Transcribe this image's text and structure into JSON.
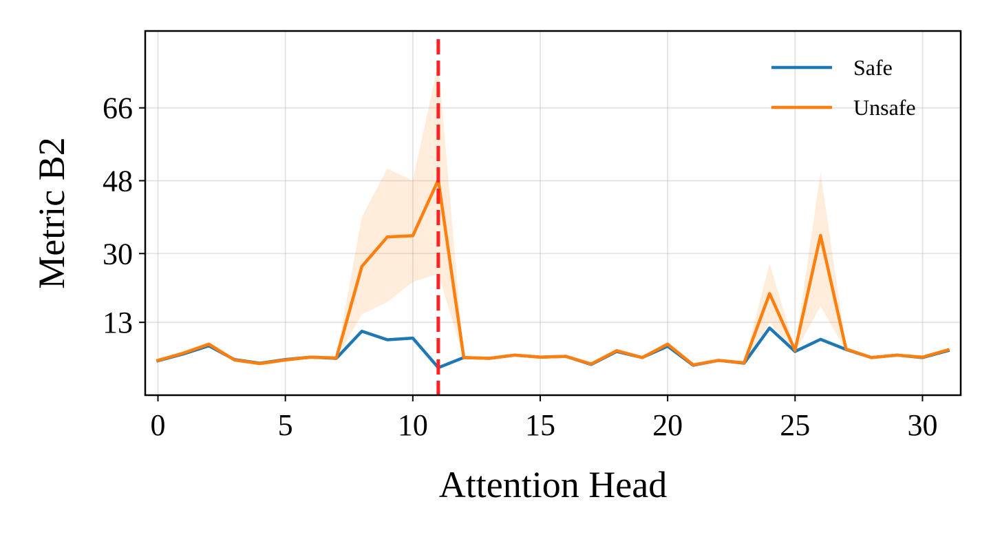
{
  "chart_data": {
    "type": "line",
    "xlabel": "Attention Head",
    "ylabel": "Metric B2",
    "xlim": [
      -0.5,
      31.5
    ],
    "ylim": [
      -5,
      85
    ],
    "xticks": [
      0,
      5,
      10,
      15,
      20,
      25,
      30
    ],
    "yticks": [
      13,
      30,
      48,
      66
    ],
    "grid": true,
    "legend_position": "top-right",
    "x": [
      0,
      1,
      2,
      3,
      4,
      5,
      6,
      7,
      8,
      9,
      10,
      11,
      12,
      13,
      14,
      15,
      16,
      17,
      18,
      19,
      20,
      21,
      22,
      23,
      24,
      25,
      26,
      27,
      28,
      29,
      30,
      31
    ],
    "series": [
      {
        "name": "Safe",
        "color": "#1f77b4",
        "values": [
          3.5,
          5.2,
          7.2,
          3.8,
          2.9,
          3.8,
          4.4,
          4.1,
          10.8,
          8.7,
          9.1,
          1.8,
          4.3,
          4.1,
          4.9,
          4.4,
          4.6,
          2.6,
          5.8,
          4.3,
          7.1,
          2.4,
          3.6,
          2.9,
          11.6,
          5.8,
          8.8,
          6.3,
          4.3,
          4.9,
          4.3,
          6.0
        ]
      },
      {
        "name": "Unsafe",
        "color": "#ff7f0e",
        "values": [
          3.6,
          5.4,
          7.6,
          3.7,
          2.8,
          3.7,
          4.4,
          4.2,
          26.8,
          34.1,
          34.4,
          48.2,
          4.3,
          4.1,
          4.9,
          4.4,
          4.6,
          2.7,
          6.0,
          4.3,
          7.6,
          2.5,
          3.6,
          3.0,
          20.1,
          6.1,
          34.5,
          6.4,
          4.3,
          4.9,
          4.4,
          6.2
        ],
        "band_lower": [
          3.4,
          5.0,
          7.0,
          3.5,
          2.6,
          3.5,
          4.2,
          4.0,
          15.0,
          18.0,
          23.0,
          25.0,
          4.1,
          3.9,
          4.7,
          4.2,
          4.4,
          2.5,
          5.6,
          4.1,
          7.0,
          2.3,
          3.4,
          2.8,
          13.0,
          5.6,
          17.0,
          6.0,
          4.1,
          4.7,
          4.2,
          5.8
        ],
        "band_upper": [
          3.8,
          5.8,
          8.2,
          3.9,
          3.0,
          3.9,
          4.6,
          4.4,
          39.0,
          51.0,
          48.0,
          77.0,
          4.5,
          4.3,
          5.1,
          4.6,
          4.8,
          2.9,
          6.4,
          4.5,
          8.2,
          2.7,
          3.8,
          3.2,
          27.5,
          6.6,
          50.0,
          6.8,
          4.5,
          5.1,
          4.6,
          6.6
        ],
        "band_color": "#ff7f0e",
        "band_opacity": 0.15
      }
    ],
    "annotations": [
      {
        "type": "vline",
        "x": 11,
        "color": "#ff2222",
        "style": "dashed"
      }
    ]
  }
}
